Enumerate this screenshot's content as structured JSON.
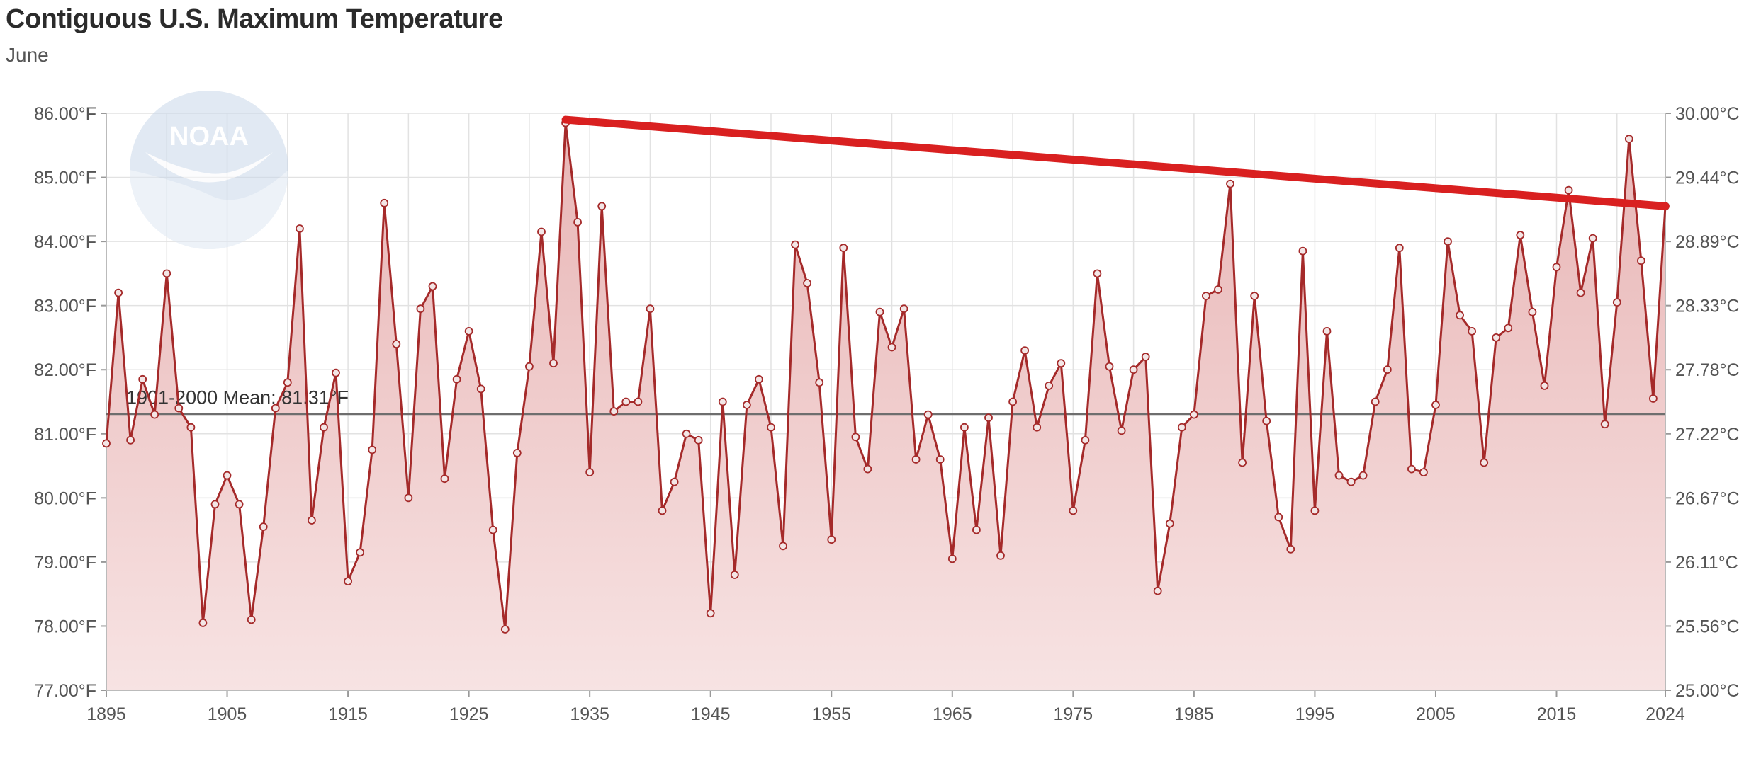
{
  "colors": {
    "series": "#a52a2a",
    "fill_top": "#e8b5b5",
    "fill_bottom": "#f7e3e3",
    "trend": "#d92020",
    "mean_line": "#6e6e6e",
    "grid": "#e2e2e2"
  },
  "logo": {
    "text": "NOAA",
    "icon": "noaa-logo-icon"
  },
  "chart_data": {
    "type": "area",
    "title": "Contiguous U.S. Maximum Temperature",
    "subtitle": "June",
    "xlabel": "",
    "ylabel": "",
    "xlim": [
      1895,
      2024
    ],
    "ylim": [
      77,
      86
    ],
    "y_ticks": [
      "86.00°F",
      "85.00°F",
      "84.00°F",
      "83.00°F",
      "82.00°F",
      "81.00°F",
      "80.00°F",
      "79.00°F",
      "78.00°F",
      "77.00°F"
    ],
    "y2_ticks": [
      "30.00°C",
      "29.44°C",
      "28.89°C",
      "28.33°C",
      "27.78°C",
      "27.22°C",
      "26.67°C",
      "26.11°C",
      "25.56°C",
      "25.00°C"
    ],
    "x_ticks": [
      "1895",
      "1905",
      "1915",
      "1925",
      "1935",
      "1945",
      "1955",
      "1965",
      "1975",
      "1985",
      "1995",
      "2005",
      "2015",
      "2024"
    ],
    "grid": true,
    "mean": {
      "label": "1901-2000 Mean: 81.31°F",
      "value": 81.31
    },
    "trend_line": {
      "x": [
        1933,
        2024
      ],
      "y": [
        85.9,
        84.55
      ]
    },
    "series": [
      {
        "x": [
          1895,
          1896,
          1897,
          1898,
          1899,
          1900,
          1901,
          1902,
          1903,
          1904,
          1905,
          1906,
          1907,
          1908,
          1909,
          1910,
          1911,
          1912,
          1913,
          1914,
          1915,
          1916,
          1917,
          1918,
          1919,
          1920,
          1921,
          1922,
          1923,
          1924,
          1925,
          1926,
          1927,
          1928,
          1929,
          1930,
          1931,
          1932,
          1933,
          1934,
          1935,
          1936,
          1937,
          1938,
          1939,
          1940,
          1941,
          1942,
          1943,
          1944,
          1945,
          1946,
          1947,
          1948,
          1949,
          1950,
          1951,
          1952,
          1953,
          1954,
          1955,
          1956,
          1957,
          1958,
          1959,
          1960,
          1961,
          1962,
          1963,
          1964,
          1965,
          1966,
          1967,
          1968,
          1969,
          1970,
          1971,
          1972,
          1973,
          1974,
          1975,
          1976,
          1977,
          1978,
          1979,
          1980,
          1981,
          1982,
          1983,
          1984,
          1985,
          1986,
          1987,
          1988,
          1989,
          1990,
          1991,
          1992,
          1993,
          1994,
          1995,
          1996,
          1997,
          1998,
          1999,
          2000,
          2001,
          2002,
          2003,
          2004,
          2005,
          2006,
          2007,
          2008,
          2009,
          2010,
          2011,
          2012,
          2013,
          2014,
          2015,
          2016,
          2017,
          2018,
          2019,
          2020,
          2021,
          2022,
          2023,
          2024
        ],
        "values": [
          80.85,
          83.2,
          80.9,
          81.85,
          81.3,
          83.5,
          81.4,
          81.1,
          78.05,
          79.9,
          80.35,
          79.9,
          78.1,
          79.55,
          81.4,
          81.8,
          84.2,
          79.65,
          81.1,
          81.95,
          78.7,
          79.15,
          80.75,
          84.6,
          82.4,
          80.0,
          82.95,
          83.3,
          80.3,
          81.85,
          82.6,
          81.7,
          79.5,
          77.95,
          80.7,
          82.05,
          84.15,
          82.1,
          85.85,
          84.3,
          80.4,
          84.55,
          81.35,
          81.5,
          81.5,
          82.95,
          79.8,
          80.25,
          81.0,
          80.9,
          78.2,
          81.5,
          78.8,
          81.45,
          81.85,
          81.1,
          79.25,
          83.95,
          83.35,
          81.8,
          79.35,
          83.9,
          80.95,
          80.45,
          82.9,
          82.35,
          82.95,
          80.6,
          81.3,
          80.6,
          79.05,
          81.1,
          79.5,
          81.25,
          79.1,
          81.5,
          82.3,
          81.1,
          81.75,
          82.1,
          79.8,
          80.9,
          83.5,
          82.05,
          81.05,
          82.0,
          82.2,
          78.55,
          79.6,
          81.1,
          81.3,
          83.15,
          83.25,
          84.9,
          80.55,
          83.15,
          81.2,
          79.7,
          79.2,
          83.85,
          79.8,
          82.6,
          80.35,
          80.25,
          80.35,
          81.5,
          82.0,
          83.9,
          80.45,
          80.4,
          81.45,
          84.0,
          82.85,
          82.6,
          80.55,
          82.5,
          82.65,
          84.1,
          82.9,
          81.75,
          83.6,
          84.8,
          83.2,
          84.05,
          81.15,
          83.05,
          85.6,
          83.7,
          81.55,
          84.55
        ]
      }
    ]
  }
}
